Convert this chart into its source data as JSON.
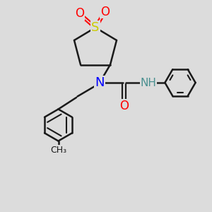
{
  "bg_color": "#dcdcdc",
  "bond_color": "#1a1a1a",
  "n_color": "#0000ff",
  "o_color": "#ff0000",
  "s_color": "#cccc00",
  "nh_color": "#4a9090",
  "figsize": [
    3.0,
    3.0
  ],
  "dpi": 100,
  "xlim": [
    0,
    10
  ],
  "ylim": [
    0,
    10
  ]
}
